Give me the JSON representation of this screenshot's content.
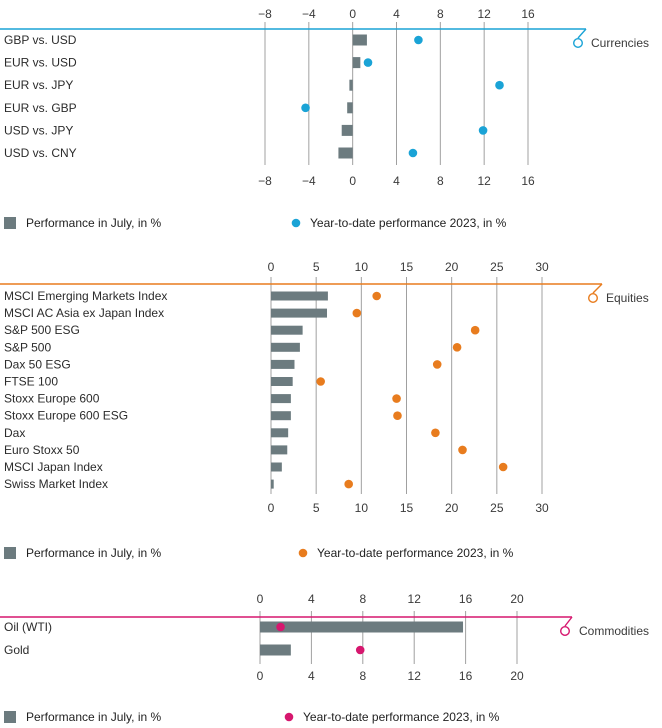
{
  "colors": {
    "bar": "#6c7b7f",
    "grid": "#a0a0a0",
    "currencies": "#1aa3d6",
    "equities": "#e87c1e",
    "commodities": "#d6176e"
  },
  "chart_data": [
    {
      "type": "bar",
      "section_title": "Currencies",
      "accent": "#1aa3d6",
      "categories": [
        "GBP vs. USD",
        "EUR vs. USD",
        "EUR vs. JPY",
        "EUR vs. GBP",
        "USD vs. JPY",
        "USD vs. CNY"
      ],
      "ticks": [
        -8,
        -4,
        0,
        4,
        8,
        12,
        16
      ],
      "xlim": [
        -8,
        16
      ],
      "series": [
        {
          "name": "Performance in July, in %",
          "kind": "bar",
          "values": [
            1.3,
            0.7,
            -0.3,
            -0.5,
            -1.0,
            -1.3
          ]
        },
        {
          "name": "Year-to-date performance 2023, in %",
          "kind": "dot",
          "values": [
            6.0,
            1.4,
            13.4,
            -4.3,
            11.9,
            5.5
          ]
        }
      ]
    },
    {
      "type": "bar",
      "section_title": "Equities",
      "accent": "#e87c1e",
      "categories": [
        "MSCI Emerging Markets Index",
        "MSCI AC Asia ex Japan Index",
        "S&P 500 ESG",
        "S&P 500",
        "Dax 50 ESG",
        "FTSE 100",
        "Stoxx Europe 600",
        "Stoxx Europe 600 ESG",
        "Dax",
        "Euro Stoxx 50",
        "MSCI Japan Index",
        "Swiss Market Index"
      ],
      "ticks": [
        0,
        5,
        10,
        15,
        20,
        25,
        30
      ],
      "xlim": [
        0,
        30
      ],
      "series": [
        {
          "name": "Performance in July, in %",
          "kind": "bar",
          "values": [
            6.3,
            6.2,
            3.5,
            3.2,
            2.6,
            2.4,
            2.2,
            2.2,
            1.9,
            1.8,
            1.2,
            0.3
          ]
        },
        {
          "name": "Year-to-date performance 2023, in %",
          "kind": "dot",
          "values": [
            11.7,
            9.5,
            22.6,
            20.6,
            18.4,
            5.5,
            13.9,
            14.0,
            18.2,
            21.2,
            25.7,
            8.6
          ]
        }
      ]
    },
    {
      "type": "bar",
      "section_title": "Commodities",
      "accent": "#d6176e",
      "categories": [
        "Oil (WTI)",
        "Gold"
      ],
      "ticks": [
        0,
        4,
        8,
        12,
        16,
        20
      ],
      "xlim": [
        0,
        20
      ],
      "series": [
        {
          "name": "Performance in July, in %",
          "kind": "bar",
          "values": [
            15.8,
            2.4
          ]
        },
        {
          "name": "Year-to-date performance 2023, in %",
          "kind": "dot",
          "values": [
            1.6,
            7.8
          ]
        }
      ]
    }
  ]
}
